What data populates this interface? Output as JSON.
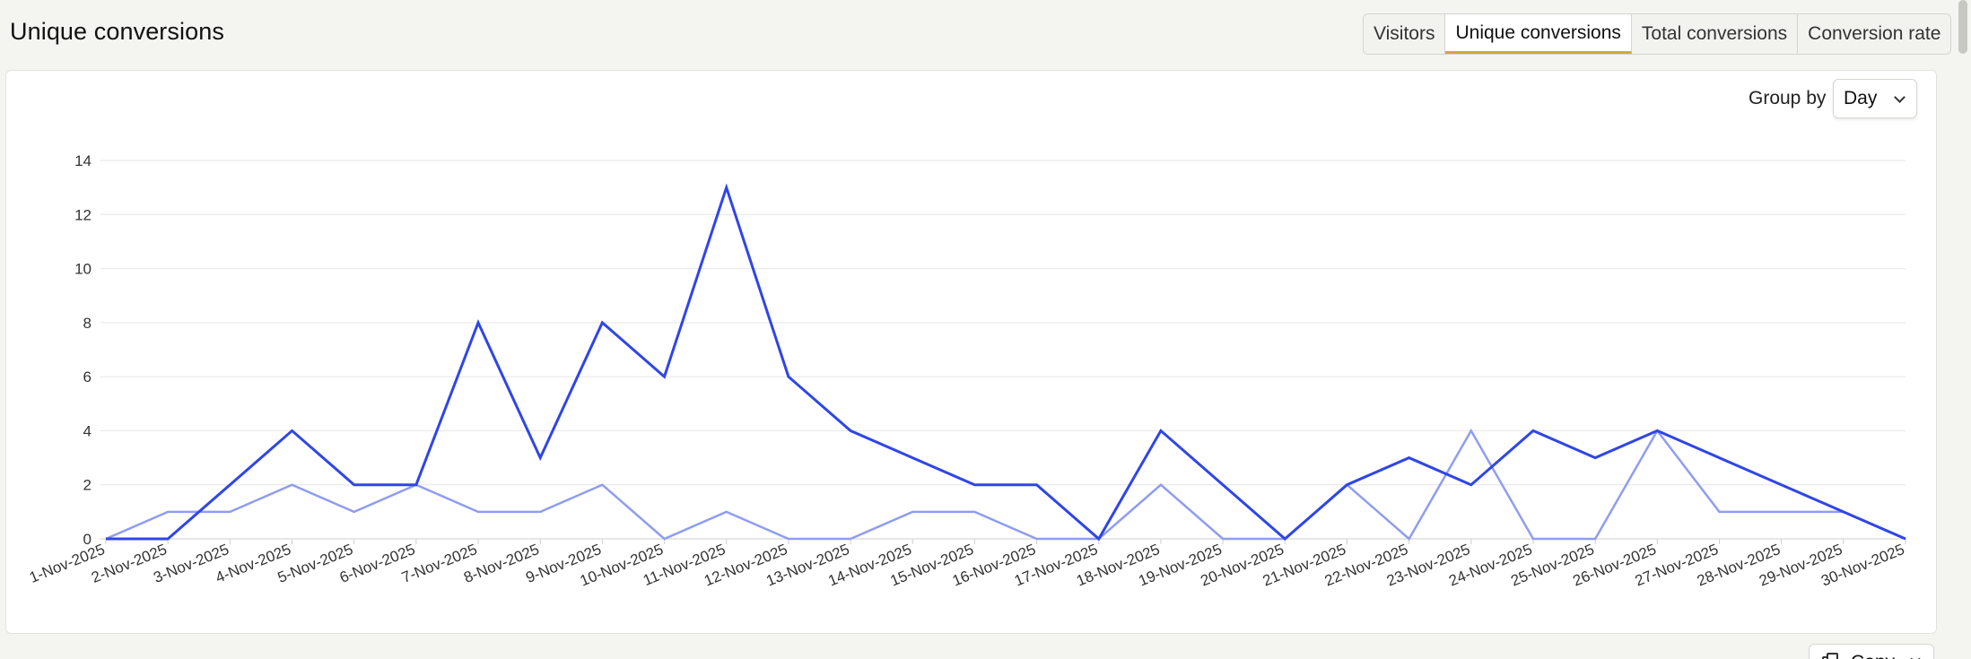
{
  "header": {
    "title": "Unique conversions"
  },
  "tabs": [
    {
      "label": "Visitors",
      "active": false
    },
    {
      "label": "Unique conversions",
      "active": true
    },
    {
      "label": "Total conversions",
      "active": false
    },
    {
      "label": "Conversion rate",
      "active": false
    }
  ],
  "controls": {
    "group_by_label": "Group by",
    "group_by_value": "Day",
    "copy_label": "Copy"
  },
  "colors": {
    "series_primary": "#2f45e8",
    "series_secondary": "#8f9df0",
    "grid": "#e6e6e6",
    "tab_active_underline": "#d7a53e"
  },
  "chart_data": {
    "type": "line",
    "title": "",
    "xlabel": "",
    "ylabel": "",
    "ylim": [
      0,
      14
    ],
    "yticks": [
      0,
      2,
      4,
      6,
      8,
      10,
      12,
      14
    ],
    "grid": true,
    "categories": [
      "1-Nov-2025",
      "2-Nov-2025",
      "3-Nov-2025",
      "4-Nov-2025",
      "5-Nov-2025",
      "6-Nov-2025",
      "7-Nov-2025",
      "8-Nov-2025",
      "9-Nov-2025",
      "10-Nov-2025",
      "11-Nov-2025",
      "12-Nov-2025",
      "13-Nov-2025",
      "14-Nov-2025",
      "15-Nov-2025",
      "16-Nov-2025",
      "17-Nov-2025",
      "18-Nov-2025",
      "19-Nov-2025",
      "20-Nov-2025",
      "21-Nov-2025",
      "22-Nov-2025",
      "23-Nov-2025",
      "24-Nov-2025",
      "25-Nov-2025",
      "26-Nov-2025",
      "27-Nov-2025",
      "28-Nov-2025",
      "29-Nov-2025",
      "30-Nov-2025"
    ],
    "series": [
      {
        "values": [
          0,
          0,
          2,
          4,
          2,
          2,
          8,
          3,
          8,
          6,
          13,
          6,
          4,
          3,
          2,
          2,
          0,
          4,
          2,
          0,
          2,
          3,
          2,
          4,
          3,
          4,
          3,
          2,
          1,
          0
        ]
      },
      {
        "values": [
          0,
          1,
          1,
          2,
          1,
          2,
          1,
          1,
          2,
          0,
          1,
          0,
          0,
          1,
          1,
          0,
          0,
          2,
          0,
          0,
          2,
          0,
          4,
          0,
          0,
          4,
          1,
          1,
          1,
          0
        ]
      }
    ]
  }
}
